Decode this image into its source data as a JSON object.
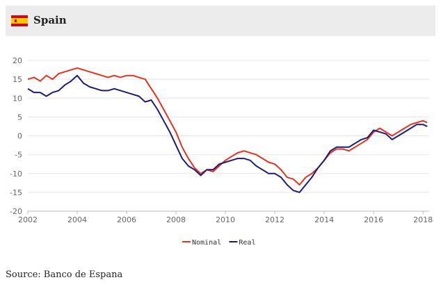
{
  "header": {
    "title": "Spain",
    "flag_icon": "spain-flag-icon"
  },
  "source": "Source: Banco de Espana",
  "colors": {
    "nominal": "#e8301c",
    "real": "#1a1a7a",
    "grid": "#e4e4e4",
    "header_bg": "#ececec"
  },
  "chart_data": {
    "type": "line",
    "title": "",
    "xlabel": "",
    "ylabel": "",
    "xlim": [
      2002,
      2018.25
    ],
    "ylim": [
      -20,
      20
    ],
    "x_ticks": [
      "2002",
      "2004",
      "2006",
      "2008",
      "2010",
      "2012",
      "2014",
      "2016",
      "2018"
    ],
    "y_ticks": [
      "20",
      "15",
      "10",
      "5",
      "0",
      "-5",
      "-10",
      "-15",
      "-20"
    ],
    "grid": "horizontal",
    "legend_position": "bottom-center",
    "x": [
      2002.0,
      2002.25,
      2002.5,
      2002.75,
      2003.0,
      2003.25,
      2003.5,
      2003.75,
      2004.0,
      2004.25,
      2004.5,
      2004.75,
      2005.0,
      2005.25,
      2005.5,
      2005.75,
      2006.0,
      2006.25,
      2006.5,
      2006.75,
      2007.0,
      2007.25,
      2007.5,
      2007.75,
      2008.0,
      2008.25,
      2008.5,
      2008.75,
      2009.0,
      2009.25,
      2009.5,
      2009.75,
      2010.0,
      2010.25,
      2010.5,
      2010.75,
      2011.0,
      2011.25,
      2011.5,
      2011.75,
      2012.0,
      2012.25,
      2012.5,
      2012.75,
      2013.0,
      2013.25,
      2013.5,
      2013.75,
      2014.0,
      2014.25,
      2014.5,
      2014.75,
      2015.0,
      2015.25,
      2015.5,
      2015.75,
      2016.0,
      2016.25,
      2016.5,
      2016.75,
      2017.0,
      2017.25,
      2017.5,
      2017.75,
      2018.0,
      2018.17
    ],
    "series": [
      {
        "name": "Nominal",
        "values": [
          15,
          15.5,
          14.5,
          16,
          15,
          16.5,
          17,
          17.5,
          18,
          17.5,
          17,
          16.5,
          16,
          15.5,
          16,
          15.5,
          16,
          16,
          15.5,
          15,
          12.5,
          10,
          7,
          4,
          1,
          -3,
          -6,
          -8.5,
          -10,
          -9,
          -9.5,
          -8,
          -6.5,
          -5.5,
          -4.5,
          -4,
          -4.5,
          -5,
          -6,
          -7,
          -7.5,
          -9,
          -11,
          -11.5,
          -13,
          -11,
          -10,
          -8.5,
          -6.5,
          -4.5,
          -3.5,
          -3.5,
          -4,
          -3,
          -2,
          -1,
          1,
          2,
          1,
          0,
          1,
          2,
          3,
          3.5,
          4,
          3.5
        ]
      },
      {
        "name": "Real",
        "values": [
          12.5,
          11.5,
          11.5,
          10.5,
          11.5,
          12,
          13.5,
          14.5,
          16,
          14,
          13,
          12.5,
          12,
          12,
          12.5,
          12,
          11.5,
          11,
          10.5,
          9,
          9.5,
          7,
          4,
          1,
          -2.5,
          -6,
          -8,
          -9,
          -10.5,
          -9,
          -9,
          -7.5,
          -7,
          -6.5,
          -6,
          -6,
          -6.5,
          -8,
          -9,
          -10,
          -10,
          -11,
          -13,
          -14.5,
          -15,
          -13,
          -11,
          -8.5,
          -6.5,
          -4,
          -3,
          -3,
          -3,
          -2,
          -1,
          -0.5,
          1.5,
          1,
          0.5,
          -1,
          0,
          1,
          2,
          3,
          3,
          2.5
        ]
      }
    ]
  }
}
